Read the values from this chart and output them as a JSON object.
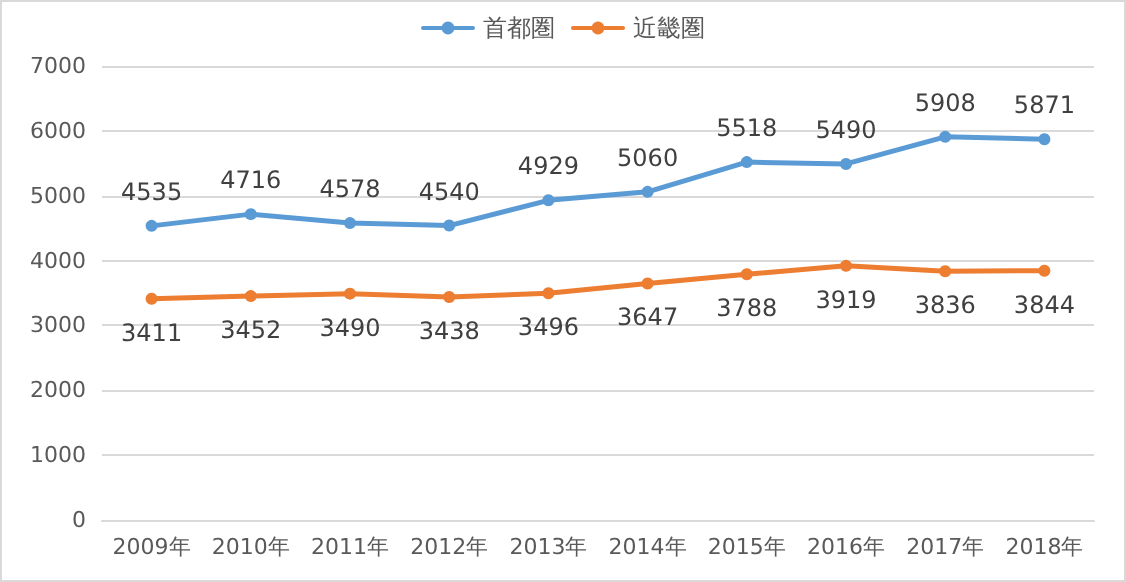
{
  "chart_data": {
    "type": "line",
    "categories": [
      "2009年",
      "2010年",
      "2011年",
      "2012年",
      "2013年",
      "2014年",
      "2015年",
      "2016年",
      "2017年",
      "2018年"
    ],
    "series": [
      {
        "name": "首都圏",
        "color": "#5b9bd5",
        "values": [
          4535,
          4716,
          4578,
          4540,
          4929,
          5060,
          5518,
          5490,
          5908,
          5871
        ]
      },
      {
        "name": "近畿圏",
        "color": "#ed7d31",
        "values": [
          3411,
          3452,
          3490,
          3438,
          3496,
          3647,
          3788,
          3919,
          3836,
          3844
        ]
      }
    ],
    "ylim": [
      0,
      7000
    ],
    "yticks": [
      0,
      1000,
      2000,
      3000,
      4000,
      5000,
      6000,
      7000
    ],
    "grid": "y",
    "legend": "top",
    "marker": "circle",
    "line_style": "solid",
    "data_labels": true
  }
}
